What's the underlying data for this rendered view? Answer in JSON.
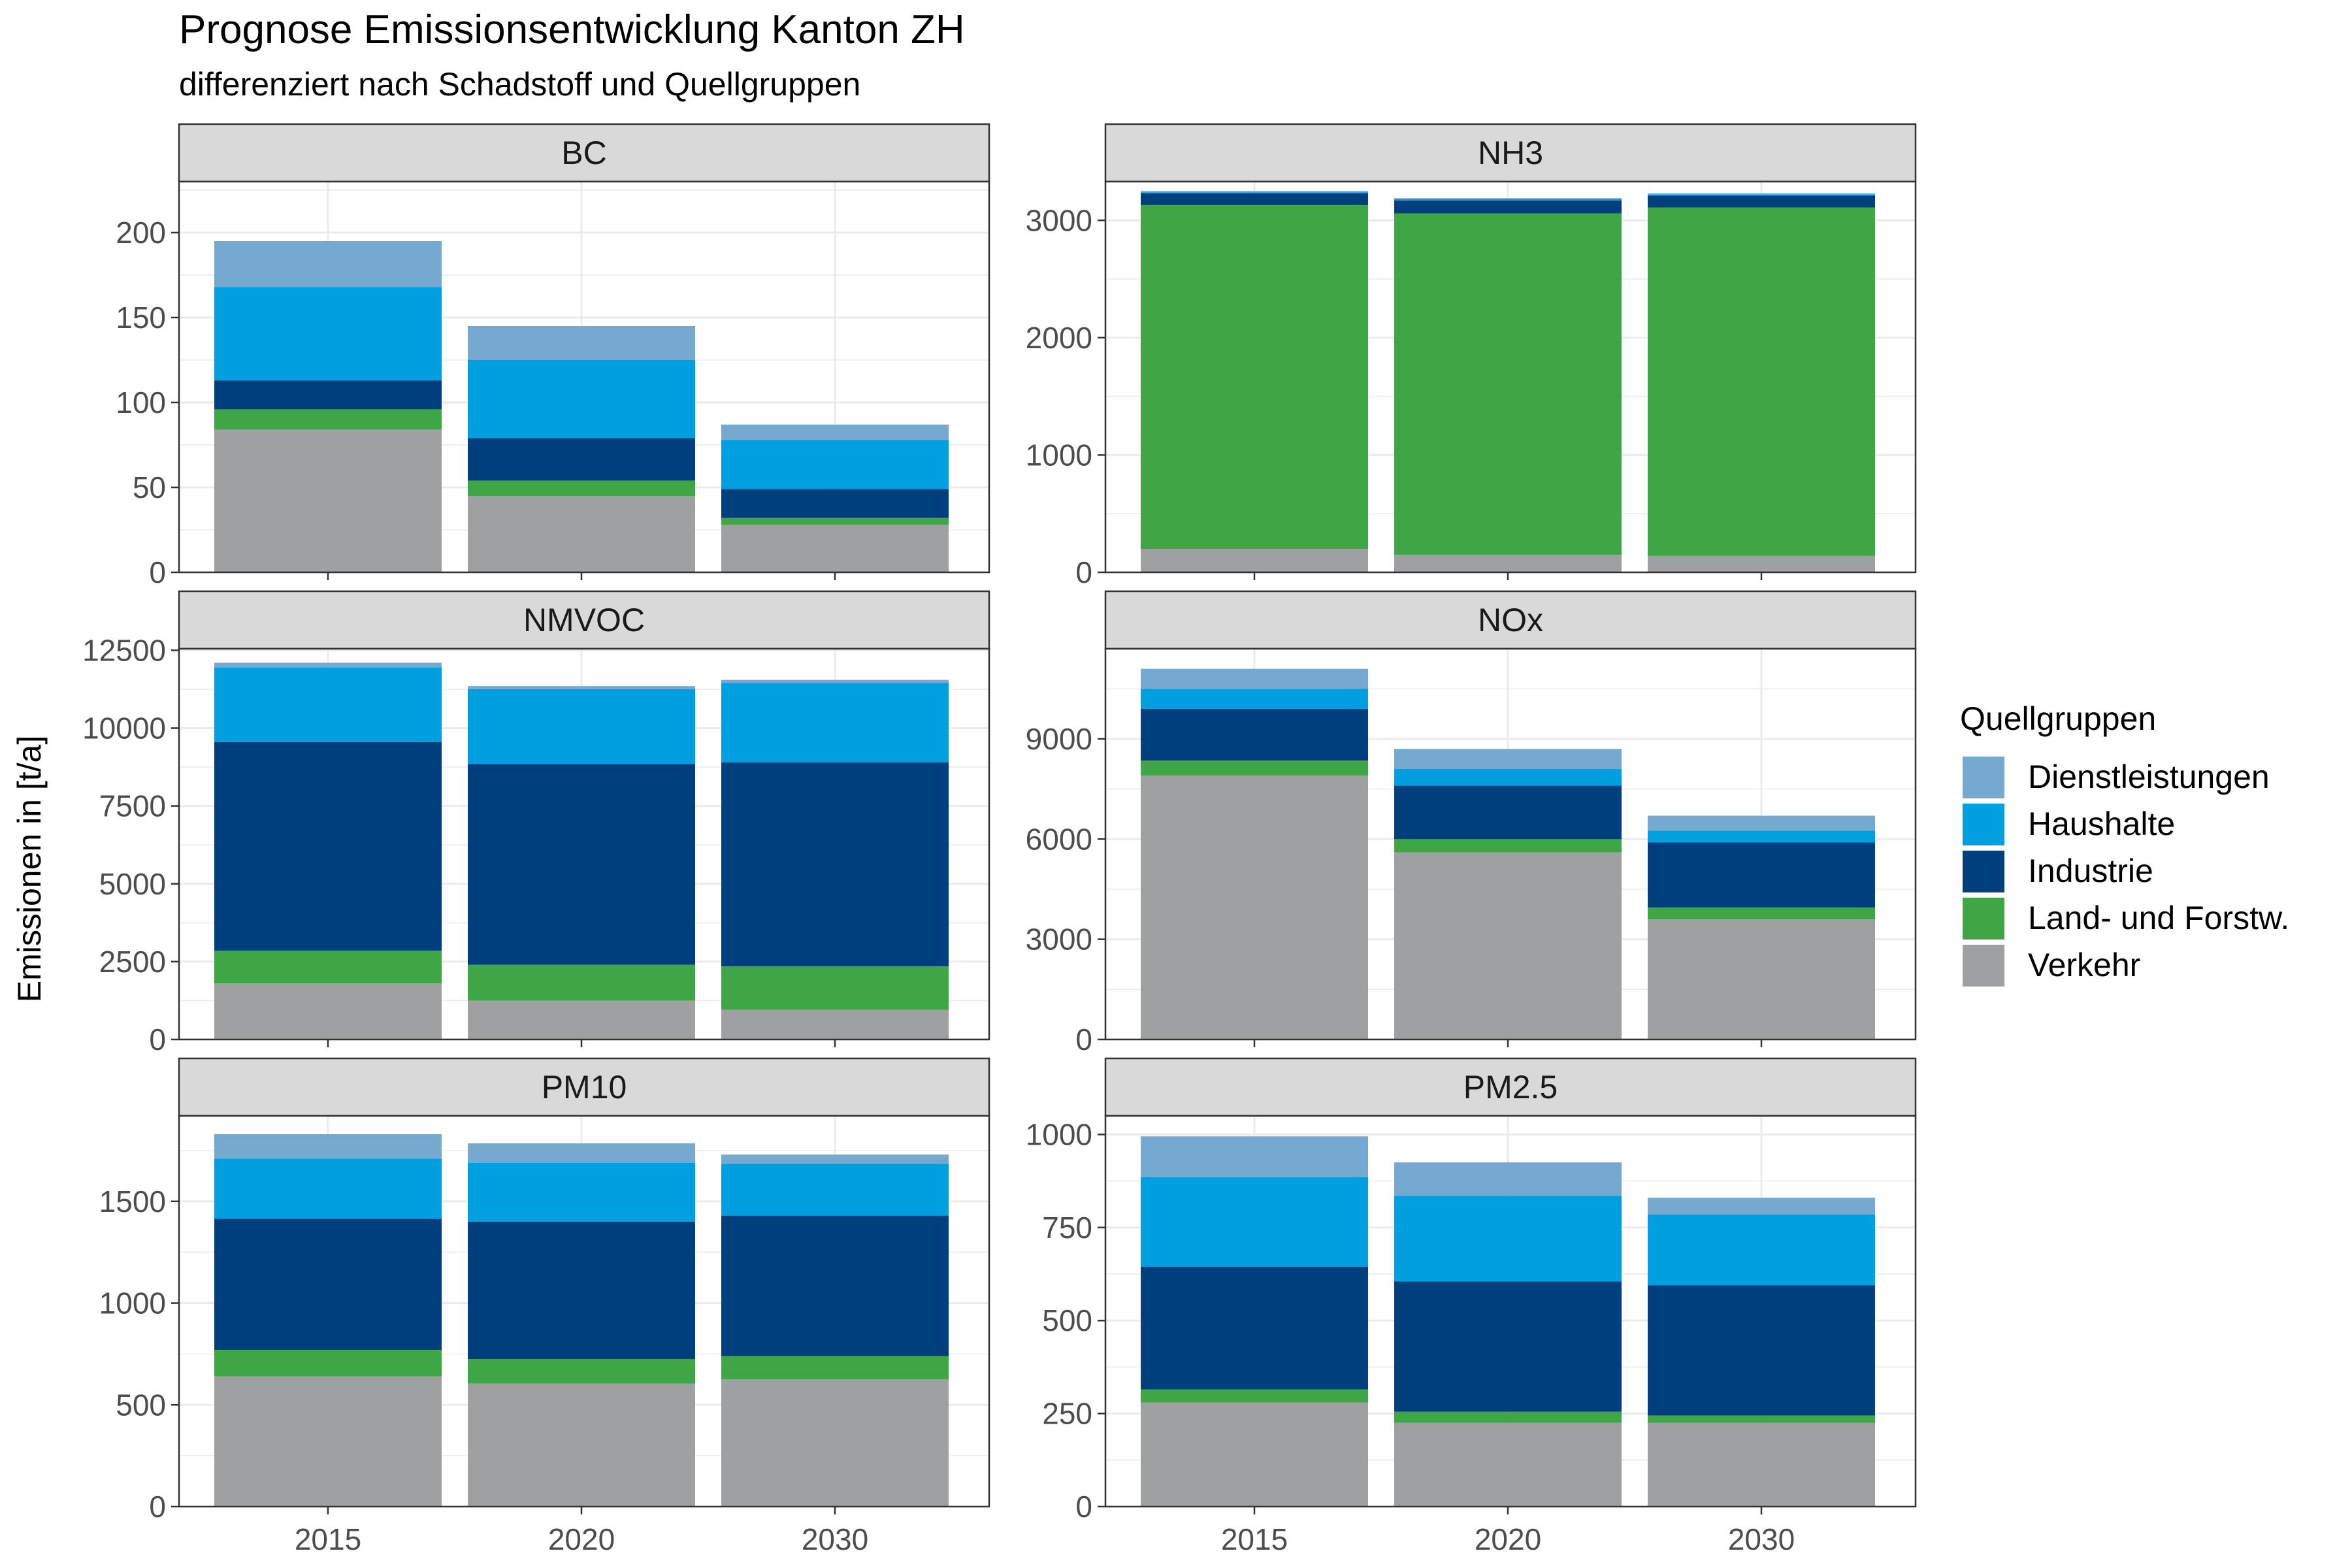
{
  "chart_data": {
    "type": "bar",
    "stacked": true,
    "title": "Prognose Emissionsentwicklung Kanton ZH",
    "subtitle": "differenziert nach Schadstoff und Quellgruppen",
    "ylabel": "Emissionen in [t/a]",
    "xlabel": "",
    "categories": [
      "2015",
      "2020",
      "2030"
    ],
    "grid": true,
    "legend": {
      "title": "Quellgruppen",
      "position": "right",
      "entries": [
        {
          "name": "Dienstleistungen",
          "color": "#76A9D0"
        },
        {
          "name": "Haushalte",
          "color": "#009FE0"
        },
        {
          "name": "Industrie",
          "color": "#003F7E"
        },
        {
          "name": "Land- und Forstw.",
          "color": "#3FA645"
        },
        {
          "name": "Verkehr",
          "color": "#9FA0A2"
        }
      ]
    },
    "stack_order_bottom_to_top": [
      "Verkehr",
      "Land- und Forstw.",
      "Industrie",
      "Haushalte",
      "Dienstleistungen"
    ],
    "panels": [
      {
        "name": "BC",
        "ylim": [
          0,
          230
        ],
        "yticks": [
          0,
          50,
          100,
          150,
          200
        ],
        "series": [
          {
            "name": "Verkehr",
            "values": [
              84,
              45,
              28
            ]
          },
          {
            "name": "Land- und Forstw.",
            "values": [
              12,
              9,
              4
            ]
          },
          {
            "name": "Industrie",
            "values": [
              17,
              25,
              17
            ]
          },
          {
            "name": "Haushalte",
            "values": [
              55,
              46,
              29
            ]
          },
          {
            "name": "Dienstleistungen",
            "values": [
              27,
              20,
              9
            ]
          }
        ]
      },
      {
        "name": "NH3",
        "ylim": [
          0,
          3330
        ],
        "yticks": [
          0,
          1000,
          2000,
          3000
        ],
        "series": [
          {
            "name": "Verkehr",
            "values": [
              200,
              150,
              140
            ]
          },
          {
            "name": "Land- und Forstw.",
            "values": [
              2930,
              2910,
              2970
            ]
          },
          {
            "name": "Industrie",
            "values": [
              100,
              110,
              100
            ]
          },
          {
            "name": "Haushalte",
            "values": [
              10,
              10,
              10
            ]
          },
          {
            "name": "Dienstleistungen",
            "values": [
              10,
              10,
              10
            ]
          }
        ]
      },
      {
        "name": "NMVOC",
        "ylim": [
          0,
          12550
        ],
        "yticks": [
          0,
          2500,
          5000,
          7500,
          10000,
          12500
        ],
        "series": [
          {
            "name": "Verkehr",
            "values": [
              1800,
              1250,
              950
            ]
          },
          {
            "name": "Land- und Forstw.",
            "values": [
              1050,
              1150,
              1400
            ]
          },
          {
            "name": "Industrie",
            "values": [
              6700,
              6450,
              6550
            ]
          },
          {
            "name": "Haushalte",
            "values": [
              2400,
              2400,
              2550
            ]
          },
          {
            "name": "Dienstleistungen",
            "values": [
              150,
              100,
              100
            ]
          }
        ]
      },
      {
        "name": "NOx",
        "ylim": [
          0,
          11700
        ],
        "yticks": [
          0,
          3000,
          6000,
          9000
        ],
        "series": [
          {
            "name": "Verkehr",
            "values": [
              7900,
              5600,
              3600
            ]
          },
          {
            "name": "Land- und Forstw.",
            "values": [
              450,
              400,
              350
            ]
          },
          {
            "name": "Industrie",
            "values": [
              1550,
              1600,
              1950
            ]
          },
          {
            "name": "Haushalte",
            "values": [
              600,
              500,
              350
            ]
          },
          {
            "name": "Dienstleistungen",
            "values": [
              600,
              600,
              450
            ]
          }
        ]
      },
      {
        "name": "PM10",
        "ylim": [
          0,
          1920
        ],
        "yticks": [
          0,
          500,
          1000,
          1500
        ],
        "series": [
          {
            "name": "Verkehr",
            "values": [
              640,
              605,
              625
            ]
          },
          {
            "name": "Land- und Forstw.",
            "values": [
              130,
              120,
              115
            ]
          },
          {
            "name": "Industrie",
            "values": [
              645,
              675,
              690
            ]
          },
          {
            "name": "Haushalte",
            "values": [
              295,
              290,
              255
            ]
          },
          {
            "name": "Dienstleistungen",
            "values": [
              120,
              95,
              45
            ]
          }
        ]
      },
      {
        "name": "PM2.5",
        "ylim": [
          0,
          1050
        ],
        "yticks": [
          0,
          250,
          500,
          750,
          1000
        ],
        "series": [
          {
            "name": "Verkehr",
            "values": [
              280,
              225,
              225
            ]
          },
          {
            "name": "Land- und Forstw.",
            "values": [
              35,
              30,
              20
            ]
          },
          {
            "name": "Industrie",
            "values": [
              330,
              350,
              350
            ]
          },
          {
            "name": "Haushalte",
            "values": [
              240,
              230,
              190
            ]
          },
          {
            "name": "Dienstleistungen",
            "values": [
              110,
              90,
              45
            ]
          }
        ]
      }
    ]
  }
}
